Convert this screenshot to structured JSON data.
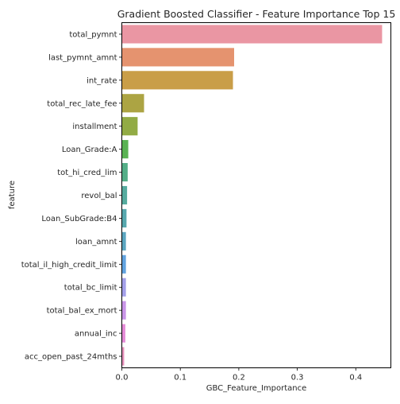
{
  "chart_data": {
    "type": "bar",
    "orientation": "horizontal",
    "title": "Gradient Boosted Classifier - Feature Importance Top 15",
    "xlabel": "GBC_Feature_Importance",
    "ylabel": "feature",
    "xlim": [
      0.0,
      0.46
    ],
    "xticks": [
      0.0,
      0.1,
      0.2,
      0.3,
      0.4
    ],
    "xtick_labels": [
      "0.0",
      "0.1",
      "0.2",
      "0.3",
      "0.4"
    ],
    "grid": false,
    "categories": [
      "total_pymnt",
      "last_pymnt_amnt",
      "int_rate",
      "total_rec_late_fee",
      "installment",
      "Loan_Grade:A",
      "tot_hi_cred_lim",
      "revol_bal",
      "Loan_SubGrade:B4",
      "loan_amnt",
      "total_il_high_credit_limit",
      "total_bc_limit",
      "total_bal_ex_mort",
      "annual_inc",
      "acc_open_past_24mths"
    ],
    "values": [
      0.445,
      0.192,
      0.19,
      0.038,
      0.027,
      0.011,
      0.01,
      0.009,
      0.008,
      0.007,
      0.007,
      0.007,
      0.007,
      0.006,
      0.004
    ],
    "colors": [
      "#ea96a3",
      "#e5936f",
      "#c99e48",
      "#aca443",
      "#92ab45",
      "#5ab253",
      "#54ae87",
      "#56ab9e",
      "#58a8ae",
      "#5ba6c0",
      "#61a3e0",
      "#a4a0e9",
      "#c995e8",
      "#e58bd7",
      "#e691bb"
    ]
  }
}
